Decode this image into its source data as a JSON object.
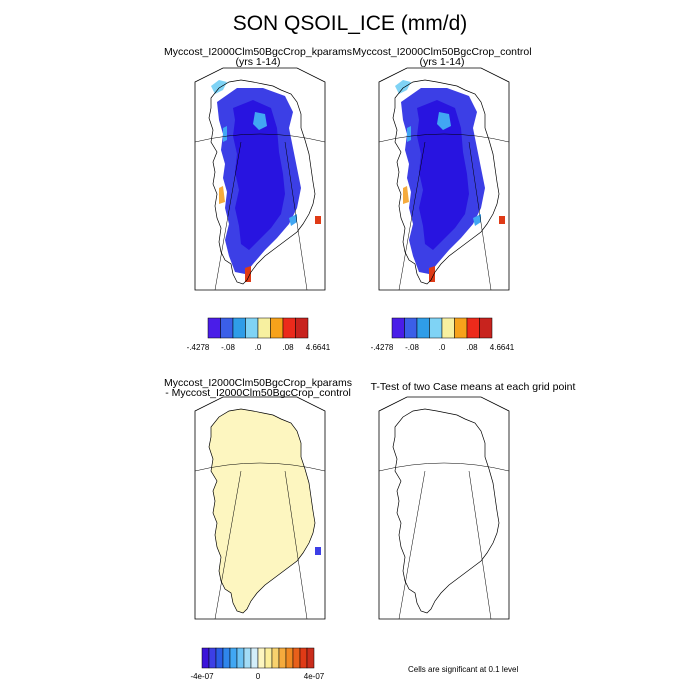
{
  "title": "SON QSOIL_ICE (mm/d)",
  "panels": [
    {
      "title_line1": "Myccost_I2000Clm50BgcCrop_kparams",
      "title_line2": "(yrs 1-14)"
    },
    {
      "title_line1": "Myccost_I2000Clm50BgcCrop_control",
      "title_line2": "(yrs 1-14)"
    },
    {
      "title_line1": "Myccost_I2000Clm50BgcCrop_kparams",
      "title_line2": "- Myccost_I2000Clm50BgcCrop_control"
    },
    {
      "title_line1": "T-Test of two Case means at each grid point",
      "title_line2": ""
    }
  ],
  "colorbar_top": {
    "colors": [
      "#4a1de8",
      "#3b5fe8",
      "#2f9de8",
      "#7fd3f5",
      "#f7f0a0",
      "#f7a21b",
      "#ec2a1b",
      "#c8231e"
    ],
    "tick_labels": [
      "-.4278",
      "-.08",
      ".0",
      ".08",
      "4.6641"
    ]
  },
  "colorbar_diff": {
    "colors": [
      "#3b13d9",
      "#3c3fe6",
      "#2a5de6",
      "#2f86ec",
      "#41a7f3",
      "#6cc3f5",
      "#a3dcf6",
      "#d3eefa",
      "#fdf6c0",
      "#fcef9b",
      "#f8d26e",
      "#f5ab3d",
      "#f08a23",
      "#e8601a",
      "#df3a16",
      "#c92d1c"
    ],
    "tick_labels": [
      "-4e-07",
      "0",
      "4e-07"
    ]
  },
  "footnote": "Cells are significant at 0.1 level"
}
